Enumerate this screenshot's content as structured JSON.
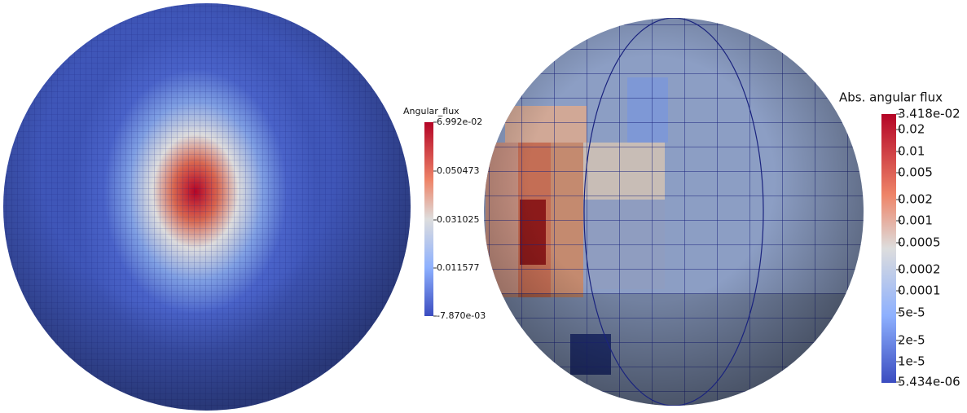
{
  "panels": [
    {
      "colorbar": {
        "title": "Angular_flux",
        "labels": [
          "6.992e-02",
          "0.050473",
          "0.031025",
          "0.011577",
          "-7.870e-03"
        ]
      }
    },
    {
      "colorbar": {
        "title": "Abs. angular flux",
        "labels": [
          "3.418e-02",
          "0.02",
          "0.01",
          "0.005",
          "0.002",
          "0.001",
          "0.0005",
          "0.0002",
          "0.0001",
          "5e-5",
          "2e-5",
          "1e-5",
          "5.434e-06"
        ]
      }
    }
  ]
}
